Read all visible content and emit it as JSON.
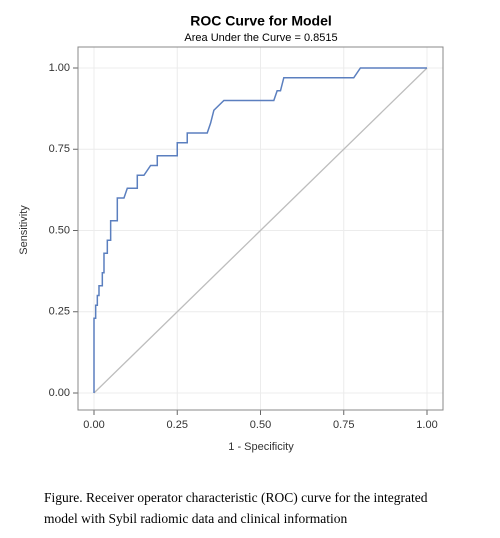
{
  "chart_data": {
    "type": "line",
    "title": "ROC Curve for Model",
    "subtitle": "Area Under the Curve = 0.8515",
    "x_label": "1 - Specificity",
    "y_label": "Sensitivity",
    "x": [
      0,
      0,
      0.005,
      0.005,
      0.01,
      0.01,
      0.015,
      0.015,
      0.025,
      0.025,
      0.03,
      0.03,
      0.04,
      0.04,
      0.05,
      0.05,
      0.07,
      0.07,
      0.09,
      0.1,
      0.13,
      0.13,
      0.15,
      0.17,
      0.19,
      0.19,
      0.25,
      0.25,
      0.28,
      0.28,
      0.34,
      0.35,
      0.36,
      0.39,
      0.54,
      0.55,
      0.56,
      0.57,
      0.78,
      0.8,
      1.0
    ],
    "series": [
      {
        "color": "#5b7fbf",
        "values": [
          0,
          0.23,
          0.23,
          0.27,
          0.27,
          0.3,
          0.3,
          0.33,
          0.33,
          0.37,
          0.37,
          0.43,
          0.43,
          0.47,
          0.47,
          0.53,
          0.53,
          0.6,
          0.6,
          0.63,
          0.63,
          0.67,
          0.67,
          0.7,
          0.7,
          0.73,
          0.73,
          0.77,
          0.77,
          0.8,
          0.8,
          0.83,
          0.87,
          0.9,
          0.9,
          0.93,
          0.93,
          0.97,
          0.97,
          1.0,
          1.0
        ]
      }
    ],
    "xlim": [
      0,
      1
    ],
    "ylim": [
      0,
      1
    ],
    "xticks": [
      {
        "value": 0,
        "label": "0.00"
      },
      {
        "value": 0.25,
        "label": "0.25"
      },
      {
        "value": 0.5,
        "label": "0.50"
      },
      {
        "value": 0.75,
        "label": "0.75"
      },
      {
        "value": 1,
        "label": "1.00"
      }
    ],
    "yticks": [
      {
        "value": 0,
        "label": "0.00"
      },
      {
        "value": 0.25,
        "label": "0.25"
      },
      {
        "value": 0.5,
        "label": "0.50"
      },
      {
        "value": 0.75,
        "label": "0.75"
      },
      {
        "value": 1,
        "label": "1.00"
      }
    ],
    "grid": true,
    "reference_line_color": "#bdbdbd"
  },
  "caption": [
    "Figure. Receiver operator characteristic (ROC) curve for the integrated",
    "model with Sybil radiomic data and clinical information"
  ]
}
